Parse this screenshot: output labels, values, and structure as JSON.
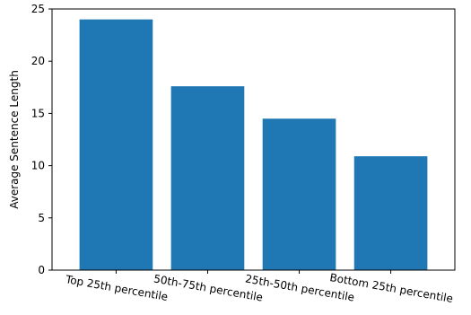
{
  "chart_data": {
    "type": "bar",
    "title": "",
    "xlabel": "",
    "ylabel": "Average Sentence Length",
    "categories": [
      "Top 25th percentile",
      "50th-75th percentile",
      "25th-50th percentile",
      "Bottom 25th percentile"
    ],
    "values": [
      24.0,
      17.6,
      14.5,
      10.9
    ],
    "ylim": [
      0,
      25
    ],
    "yticks": [
      0,
      5,
      10,
      15,
      20,
      25
    ],
    "bar_color": "#1f77b4",
    "x_tick_rotation_deg": -10,
    "grid": false,
    "legend": "none"
  }
}
